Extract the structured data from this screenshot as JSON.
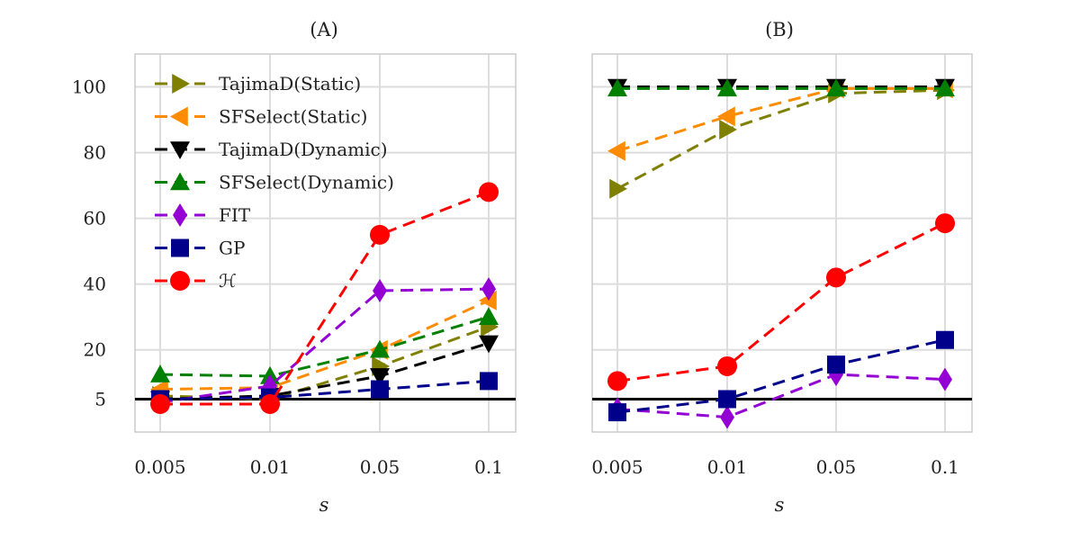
{
  "chart_data": [
    {
      "type": "line",
      "title": "(A)",
      "xlabel": "s",
      "ylabel": "",
      "x": [
        "0.005",
        "0.01",
        "0.05",
        "0.1"
      ],
      "ylim": [
        -5,
        110
      ],
      "yticks": [
        "5",
        "20",
        "40",
        "60",
        "80",
        "100"
      ],
      "ytick_values": [
        5,
        20,
        40,
        60,
        80,
        100
      ],
      "reference_line": 5,
      "grid": true,
      "legend": "upper-left",
      "series": [
        {
          "name": "TajimaD(Static)",
          "color": "#808000",
          "marker": "triangle-right",
          "values": [
            6,
            5,
            15,
            27
          ]
        },
        {
          "name": "SFSelect(Static)",
          "color": "#ff8c00",
          "marker": "triangle-left",
          "values": [
            8,
            8.5,
            20,
            35
          ]
        },
        {
          "name": "TajimaD(Dynamic)",
          "color": "#000000",
          "marker": "triangle-down",
          "values": [
            5,
            6,
            12,
            22
          ]
        },
        {
          "name": "SFSelect(Dynamic)",
          "color": "#008000",
          "marker": "triangle-up",
          "values": [
            12.5,
            12,
            20,
            30
          ]
        },
        {
          "name": "FIT",
          "color": "#9400d3",
          "marker": "diamond",
          "values": [
            4,
            9,
            38,
            38.5
          ]
        },
        {
          "name": "GP",
          "color": "#00008b",
          "marker": "square",
          "values": [
            5,
            5.5,
            8,
            10.5
          ]
        },
        {
          "name": "ℋ",
          "color": "#ff0000",
          "marker": "circle",
          "values": [
            3.5,
            3.5,
            55,
            68
          ]
        }
      ]
    },
    {
      "type": "line",
      "title": "(B)",
      "xlabel": "s",
      "ylabel": "",
      "x": [
        "0.005",
        "0.01",
        "0.05",
        "0.1"
      ],
      "ylim": [
        -5,
        110
      ],
      "reference_line": 5,
      "grid": true,
      "series": [
        {
          "name": "TajimaD(Static)",
          "color": "#808000",
          "marker": "triangle-right",
          "values": [
            69,
            87,
            98,
            99
          ]
        },
        {
          "name": "SFSelect(Static)",
          "color": "#ff8c00",
          "marker": "triangle-left",
          "values": [
            80.5,
            91,
            99.5,
            99.5
          ]
        },
        {
          "name": "TajimaD(Dynamic)",
          "color": "#000000",
          "marker": "triangle-down",
          "values": [
            100,
            100,
            100,
            100
          ]
        },
        {
          "name": "SFSelect(Dynamic)",
          "color": "#008000",
          "marker": "triangle-up",
          "values": [
            99.5,
            99.5,
            99.5,
            99.5
          ]
        },
        {
          "name": "FIT",
          "color": "#9400d3",
          "marker": "diamond",
          "values": [
            2,
            -0.5,
            12.5,
            11
          ]
        },
        {
          "name": "GP",
          "color": "#00008b",
          "marker": "square",
          "values": [
            1,
            5,
            15.5,
            23
          ]
        },
        {
          "name": "ℋ",
          "color": "#ff0000",
          "marker": "circle",
          "values": [
            10.5,
            15,
            42,
            58.5
          ]
        }
      ]
    }
  ]
}
